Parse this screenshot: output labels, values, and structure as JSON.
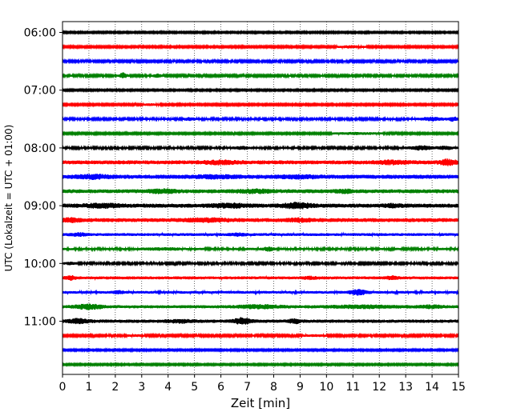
{
  "chart_data": {
    "type": "line",
    "title": "",
    "xlabel": "Zeit  [min]",
    "ylabel": "UTC (Lokalzeit = UTC + 01:00)",
    "xlim": [
      0,
      15
    ],
    "x_ticks": [
      0,
      1,
      2,
      3,
      4,
      5,
      6,
      7,
      8,
      9,
      10,
      11,
      12,
      13,
      14,
      15
    ],
    "x_tick_labels": [
      "0",
      "1",
      "2",
      "3",
      "4",
      "5",
      "6",
      "7",
      "8",
      "9",
      "10",
      "11",
      "12",
      "13",
      "14",
      "15"
    ],
    "y_tick_labels": [
      "06:00",
      "07:00",
      "08:00",
      "09:00",
      "10:00",
      "11:00"
    ],
    "y_tick_traces": [
      0,
      4,
      8,
      12,
      16,
      20
    ],
    "trace_interval_min": 15,
    "grid": {
      "x": true,
      "y": false,
      "style": "dotted"
    },
    "colors": [
      "#000000",
      "#ff0000",
      "#0000ff",
      "#008000"
    ],
    "series": [
      {
        "start": "06:00",
        "color": "#000000",
        "amplitude": 1.0,
        "bursts": []
      },
      {
        "start": "06:15",
        "color": "#ff0000",
        "amplitude": 1.1,
        "bursts": [
          [
            10.9,
            0.4,
            2.0
          ]
        ]
      },
      {
        "start": "06:30",
        "color": "#0000ff",
        "amplitude": 1.2,
        "bursts": []
      },
      {
        "start": "06:45",
        "color": "#008000",
        "amplitude": 1.2,
        "bursts": [
          [
            2.3,
            0.15,
            3.5
          ],
          [
            3.6,
            0.15,
            2.5
          ]
        ]
      },
      {
        "start": "07:00",
        "color": "#000000",
        "amplitude": 1.0,
        "bursts": []
      },
      {
        "start": "07:15",
        "color": "#ff0000",
        "amplitude": 1.1,
        "bursts": [
          [
            3.3,
            0.3,
            1.6
          ]
        ]
      },
      {
        "start": "07:30",
        "color": "#0000ff",
        "amplitude": 1.3,
        "bursts": [
          [
            4.8,
            0.2,
            2.0
          ],
          [
            14.0,
            0.4,
            2.3
          ],
          [
            14.8,
            0.2,
            2.6
          ]
        ]
      },
      {
        "start": "07:45",
        "color": "#008000",
        "amplitude": 1.1,
        "bursts": [
          [
            11.2,
            0.8,
            1.8
          ]
        ]
      },
      {
        "start": "08:00",
        "color": "#000000",
        "amplitude": 1.3,
        "bursts": [
          [
            6.8,
            0.3,
            2.0
          ],
          [
            13.6,
            0.4,
            2.6
          ],
          [
            14.5,
            0.3,
            2.2
          ]
        ]
      },
      {
        "start": "08:15",
        "color": "#ff0000",
        "amplitude": 2.4,
        "bursts": [
          [
            6.0,
            0.6,
            1.6
          ],
          [
            12.5,
            0.5,
            1.6
          ],
          [
            14.6,
            0.3,
            2.0
          ]
        ]
      },
      {
        "start": "08:30",
        "color": "#0000ff",
        "amplitude": 2.5,
        "bursts": [
          [
            1.2,
            0.6,
            1.6
          ],
          [
            5.8,
            0.8,
            1.4
          ],
          [
            9.0,
            0.7,
            1.4
          ]
        ]
      },
      {
        "start": "08:45",
        "color": "#008000",
        "amplitude": 2.4,
        "bursts": [
          [
            3.8,
            0.5,
            1.6
          ],
          [
            7.3,
            0.6,
            1.5
          ],
          [
            10.7,
            0.3,
            1.5
          ]
        ]
      },
      {
        "start": "09:00",
        "color": "#000000",
        "amplitude": 2.5,
        "bursts": [
          [
            1.5,
            0.6,
            1.6
          ],
          [
            6.3,
            0.6,
            1.7
          ],
          [
            8.9,
            0.5,
            2.0
          ],
          [
            12.5,
            0.3,
            1.4
          ]
        ]
      },
      {
        "start": "09:15",
        "color": "#ff0000",
        "amplitude": 2.4,
        "bursts": [
          [
            0.3,
            0.3,
            1.7
          ],
          [
            5.5,
            0.8,
            1.5
          ],
          [
            9.0,
            0.4,
            1.5
          ]
        ]
      },
      {
        "start": "09:30",
        "color": "#0000ff",
        "amplitude": 1.7,
        "bursts": [
          [
            0.6,
            0.3,
            1.8
          ],
          [
            6.7,
            0.3,
            1.6
          ]
        ]
      },
      {
        "start": "09:45",
        "color": "#008000",
        "amplitude": 1.4,
        "bursts": [
          [
            3.8,
            0.7,
            1.7
          ],
          [
            7.8,
            0.2,
            2.3
          ]
        ]
      },
      {
        "start": "10:00",
        "color": "#000000",
        "amplitude": 1.3,
        "bursts": [
          [
            0.3,
            0.2,
            1.8
          ]
        ]
      },
      {
        "start": "10:15",
        "color": "#ff0000",
        "amplitude": 1.8,
        "bursts": [
          [
            0.3,
            0.2,
            2.0
          ],
          [
            9.4,
            0.3,
            1.5
          ],
          [
            12.5,
            0.2,
            2.0
          ]
        ]
      },
      {
        "start": "10:30",
        "color": "#0000ff",
        "amplitude": 1.6,
        "bursts": [
          [
            2.1,
            0.2,
            1.8
          ],
          [
            11.2,
            0.3,
            2.8
          ]
        ]
      },
      {
        "start": "10:45",
        "color": "#008000",
        "amplitude": 1.9,
        "bursts": [
          [
            1.0,
            0.5,
            2.2
          ],
          [
            7.5,
            0.8,
            1.8
          ],
          [
            11.4,
            1.2,
            1.6
          ],
          [
            14.0,
            0.4,
            1.6
          ]
        ]
      },
      {
        "start": "11:00",
        "color": "#000000",
        "amplitude": 2.0,
        "bursts": [
          [
            0.6,
            0.4,
            2.0
          ],
          [
            4.5,
            0.5,
            1.6
          ],
          [
            6.8,
            0.3,
            2.6
          ],
          [
            8.8,
            0.2,
            2.0
          ]
        ]
      },
      {
        "start": "11:15",
        "color": "#ff0000",
        "amplitude": 1.2,
        "bursts": [
          [
            2.8,
            0.3,
            1.5
          ],
          [
            9.5,
            0.4,
            1.5
          ]
        ]
      },
      {
        "start": "11:30",
        "color": "#0000ff",
        "amplitude": 1.0,
        "bursts": []
      },
      {
        "start": "11:45",
        "color": "#008000",
        "amplitude": 1.0,
        "bursts": []
      }
    ]
  }
}
